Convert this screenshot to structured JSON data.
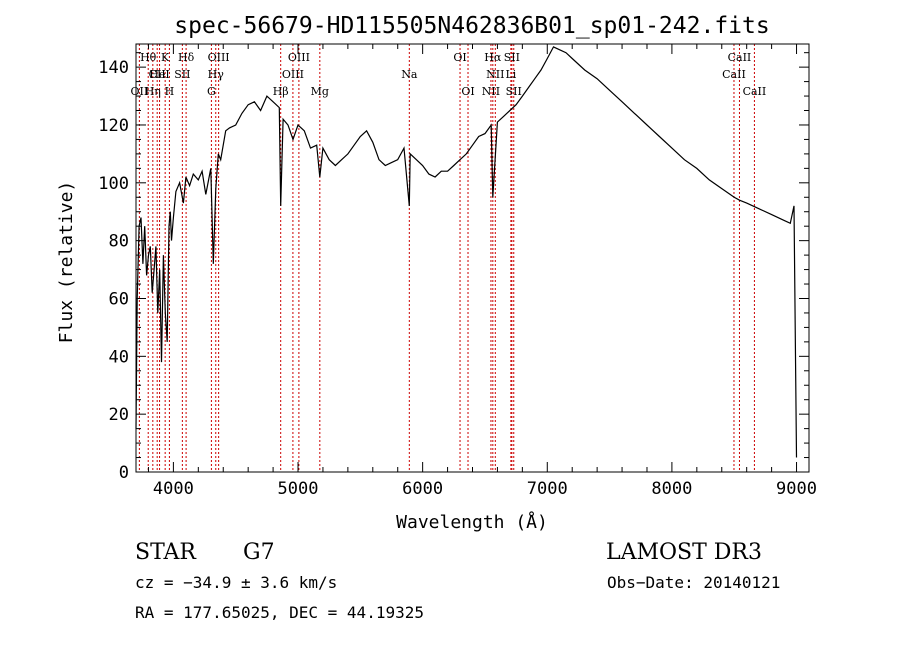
{
  "chart_data": {
    "type": "line",
    "title": "spec-56679-HD115505N462836B01_sp01-242.fits",
    "xlabel": "Wavelength (Å)",
    "ylabel": "Flux (relative)",
    "xlim": [
      3700,
      9100
    ],
    "ylim": [
      0,
      148
    ],
    "x_ticks": [
      4000,
      5000,
      6000,
      7000,
      8000,
      9000
    ],
    "y_ticks": [
      0,
      20,
      40,
      60,
      80,
      100,
      120,
      140
    ],
    "grid": false,
    "line_color": "#000000",
    "marker_color": "#cc0000",
    "series": [
      {
        "x": [
          3700,
          3710,
          3725,
          3740,
          3755,
          3770,
          3785,
          3800,
          3815,
          3830,
          3845,
          3860,
          3875,
          3890,
          3905,
          3920,
          3935,
          3950,
          3965,
          3975,
          3985,
          4000,
          4020,
          4050,
          4080,
          4100,
          4130,
          4160,
          4200,
          4230,
          4260,
          4300,
          4320,
          4340,
          4360,
          4380,
          4420,
          4450,
          4500,
          4550,
          4600,
          4650,
          4700,
          4750,
          4800,
          4850,
          4861,
          4880,
          4920,
          4960,
          5000,
          5050,
          5100,
          5150,
          5175,
          5200,
          5250,
          5300,
          5350,
          5400,
          5450,
          5500,
          5550,
          5600,
          5650,
          5700,
          5750,
          5800,
          5850,
          5893,
          5900,
          5950,
          6000,
          6050,
          6100,
          6150,
          6200,
          6250,
          6300,
          6350,
          6400,
          6450,
          6500,
          6550,
          6563,
          6600,
          6650,
          6700,
          6750,
          6800,
          6850,
          6900,
          6950,
          7000,
          7050,
          7100,
          7150,
          7200,
          7300,
          7400,
          7500,
          7600,
          7700,
          7800,
          7900,
          8000,
          8100,
          8200,
          8300,
          8400,
          8500,
          8542,
          8600,
          8700,
          8800,
          8900,
          8950,
          8980,
          9000
        ],
        "y": [
          15,
          60,
          85,
          88,
          72,
          85,
          68,
          75,
          78,
          62,
          70,
          78,
          55,
          70,
          38,
          75,
          55,
          45,
          85,
          90,
          80,
          88,
          97,
          100,
          93,
          102,
          99,
          103,
          101,
          104,
          96,
          105,
          72,
          98,
          110,
          108,
          118,
          119,
          120,
          124,
          127,
          128,
          125,
          130,
          128,
          126,
          92,
          122,
          120,
          115,
          120,
          118,
          112,
          113,
          102,
          112,
          108,
          106,
          108,
          110,
          113,
          116,
          118,
          114,
          108,
          106,
          107,
          108,
          112,
          92,
          110,
          108,
          106,
          103,
          102,
          104,
          104,
          106,
          108,
          110,
          113,
          116,
          117,
          120,
          95,
          121,
          123,
          125,
          127,
          130,
          133,
          136,
          139,
          143,
          147,
          146,
          145,
          143,
          139,
          136,
          132,
          128,
          124,
          120,
          116,
          112,
          108,
          105,
          101,
          98,
          95,
          94,
          93,
          91,
          89,
          87,
          86,
          92,
          5
        ]
      }
    ],
    "lines": [
      {
        "label": "OII",
        "wavelength": 3727,
        "row": 3
      },
      {
        "label": "Hθ",
        "wavelength": 3798,
        "row": 1
      },
      {
        "label": "Hη",
        "wavelength": 3835,
        "row": 3
      },
      {
        "label": "CII",
        "wavelength": 3870,
        "row": 2
      },
      {
        "label": "HeI",
        "wavelength": 3889,
        "row": 2
      },
      {
        "label": "K",
        "wavelength": 3934,
        "row": 1
      },
      {
        "label": "H",
        "wavelength": 3968,
        "row": 3
      },
      {
        "label": "SII",
        "wavelength": 4072,
        "row": 2
      },
      {
        "label": "Hδ",
        "wavelength": 4102,
        "row": 1
      },
      {
        "label": "G",
        "wavelength": 4305,
        "row": 3
      },
      {
        "label": "Hγ",
        "wavelength": 4340,
        "row": 2
      },
      {
        "label": "OIII",
        "wavelength": 4363,
        "row": 1
      },
      {
        "label": "Hβ",
        "wavelength": 4861,
        "row": 3
      },
      {
        "label": "OIII",
        "wavelength": 4959,
        "row": 2
      },
      {
        "label": "OIII",
        "wavelength": 5007,
        "row": 1
      },
      {
        "label": "Mg",
        "wavelength": 5175,
        "row": 3
      },
      {
        "label": "Na",
        "wavelength": 5893,
        "row": 2
      },
      {
        "label": "OI",
        "wavelength": 6300,
        "row": 1
      },
      {
        "label": "OI",
        "wavelength": 6364,
        "row": 3
      },
      {
        "label": "NII",
        "wavelength": 6548,
        "row": 3
      },
      {
        "label": "Hα",
        "wavelength": 6563,
        "row": 1
      },
      {
        "label": "NII",
        "wavelength": 6583,
        "row": 2
      },
      {
        "label": "Li",
        "wavelength": 6708,
        "row": 2
      },
      {
        "label": "SII",
        "wavelength": 6716,
        "row": 1
      },
      {
        "label": "SII",
        "wavelength": 6731,
        "row": 3
      },
      {
        "label": "CaII",
        "wavelength": 8498,
        "row": 2
      },
      {
        "label": "CaII",
        "wavelength": 8542,
        "row": 1
      },
      {
        "label": "CaII",
        "wavelength": 8662,
        "row": 3
      }
    ]
  },
  "info": {
    "object_class": "STAR",
    "subclass": "G7",
    "survey": "LAMOST DR3",
    "cz": "cz = −34.9 ± 3.6 km/s",
    "obs_date": "Obs−Date: 20140121",
    "coords": "RA = 177.65025, DEC =  44.19325"
  }
}
